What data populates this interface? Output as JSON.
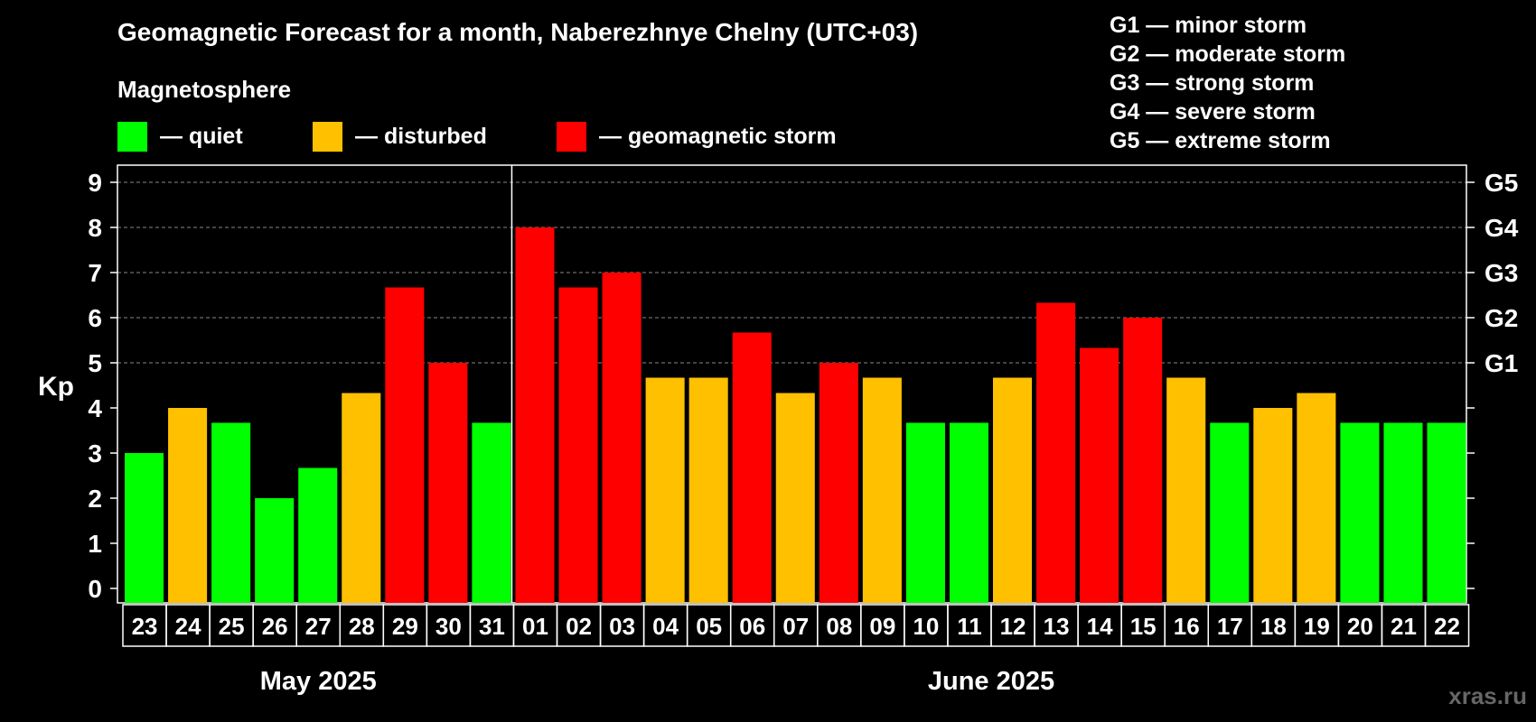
{
  "title": "Geomagnetic Forecast for a month, Naberezhnye Chelny (UTC+03)",
  "magnetosphere_label": "Magnetosphere",
  "legend": [
    {
      "label": "— quiet",
      "color": "#00ff00"
    },
    {
      "label": "— disturbed",
      "color": "#ffc000"
    },
    {
      "label": "— geomagnetic storm",
      "color": "#ff0000"
    }
  ],
  "g_scale": [
    "G1 — minor storm",
    "G2 — moderate storm",
    "G3 — strong storm",
    "G4 — severe storm",
    "G5 — extreme storm"
  ],
  "watermark": "xras.ru",
  "colors": {
    "quiet": "#00ff00",
    "disturbed": "#ffc000",
    "storm": "#ff0000",
    "grid": "#888888"
  },
  "chart_data": {
    "type": "bar",
    "ylabel": "Kp",
    "ylim": [
      0,
      9
    ],
    "yticks": [
      "0",
      "1",
      "2",
      "3",
      "4",
      "5",
      "6",
      "7",
      "8",
      "9"
    ],
    "right_axis_labels": [
      {
        "value": 5,
        "label": "G1"
      },
      {
        "value": 6,
        "label": "G2"
      },
      {
        "value": 7,
        "label": "G3"
      },
      {
        "value": 8,
        "label": "G4"
      },
      {
        "value": 9,
        "label": "G5"
      }
    ],
    "categories": [
      "23",
      "24",
      "25",
      "26",
      "27",
      "28",
      "29",
      "30",
      "31",
      "01",
      "02",
      "03",
      "04",
      "05",
      "06",
      "07",
      "08",
      "09",
      "10",
      "11",
      "12",
      "13",
      "14",
      "15",
      "16",
      "17",
      "18",
      "19",
      "20",
      "21",
      "22"
    ],
    "values": [
      3.0,
      4.0,
      3.67,
      2.0,
      2.67,
      4.33,
      6.67,
      5.0,
      3.67,
      8.0,
      6.67,
      7.0,
      4.67,
      4.67,
      5.67,
      4.33,
      5.0,
      4.67,
      3.67,
      3.67,
      4.67,
      6.33,
      5.33,
      6.0,
      4.67,
      3.67,
      4.0,
      4.33,
      3.67,
      3.67,
      3.67
    ],
    "levels": [
      "quiet",
      "disturbed",
      "quiet",
      "quiet",
      "quiet",
      "disturbed",
      "storm",
      "storm",
      "quiet",
      "storm",
      "storm",
      "storm",
      "disturbed",
      "disturbed",
      "storm",
      "disturbed",
      "storm",
      "disturbed",
      "quiet",
      "quiet",
      "disturbed",
      "storm",
      "storm",
      "storm",
      "disturbed",
      "quiet",
      "disturbed",
      "disturbed",
      "quiet",
      "quiet",
      "quiet"
    ],
    "month_groups": [
      {
        "label": "May 2025",
        "count": 9
      },
      {
        "label": "June 2025",
        "count": 22
      }
    ],
    "grid": true
  }
}
